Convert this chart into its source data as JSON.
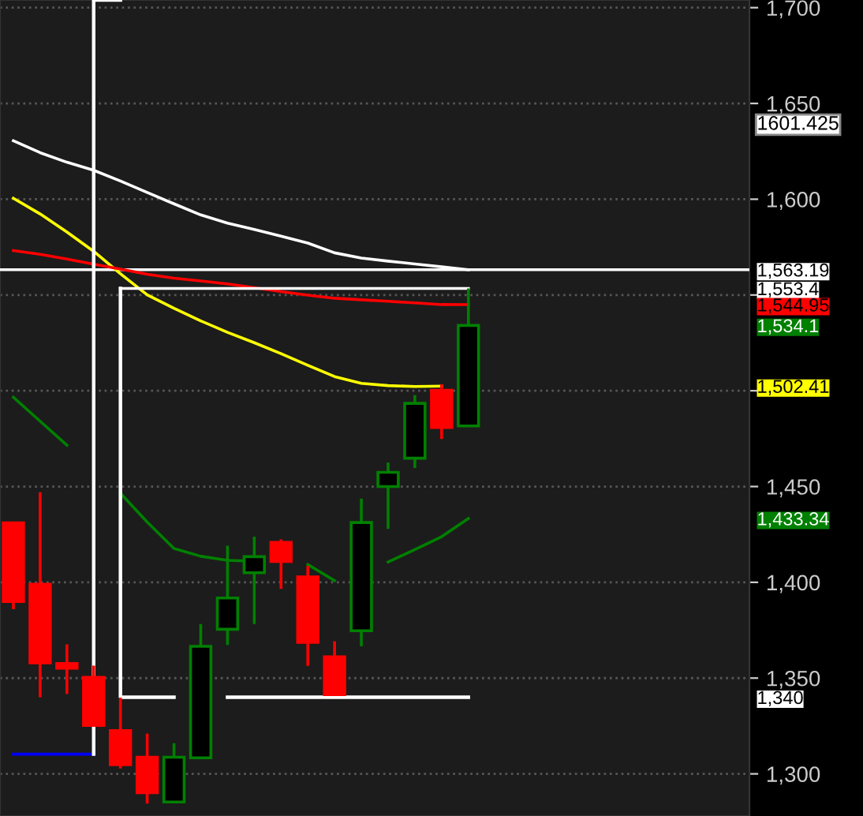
{
  "chart_data": {
    "type": "candlestick",
    "categories": [
      null,
      null,
      null,
      null,
      null,
      null,
      null,
      null,
      null,
      null,
      null,
      null,
      null,
      null,
      null,
      null,
      null,
      null,
      null,
      null,
      null,
      null,
      null,
      null,
      null,
      null,
      null,
      null
    ],
    "ylim": [
      1278,
      1704
    ],
    "yticks": [
      {
        "value": 1300,
        "label": "1,300"
      },
      {
        "value": 1350,
        "label": "1,350"
      },
      {
        "value": 1400,
        "label": "1,400"
      },
      {
        "value": 1450,
        "label": "1,450"
      },
      {
        "value": 1500,
        "label": null
      },
      {
        "value": 1550,
        "label": null
      },
      {
        "value": 1600,
        "label": "1,600"
      },
      {
        "value": 1650,
        "label": "1,650"
      },
      {
        "value": 1700,
        "label": "1,700"
      }
    ],
    "grid": "y",
    "series": [
      {
        "ohlc": [
          [
            1431,
            1431,
            1386,
            1390
          ],
          [
            1399,
            1447,
            1340,
            1358
          ],
          [
            1357.6,
            1367.6,
            1341.7,
            1355.2
          ],
          [
            1350.4,
            1356.5,
            1325,
            1325.3
          ],
          [
            1322.6,
            1339.8,
            1302.8,
            1304.8
          ],
          [
            1308.7,
            1321,
            1284.5,
            1290.2
          ],
          [
            1285.3,
            1316,
            1285.3,
            1308.7
          ],
          [
            1308.4,
            1378.2,
            1308.4,
            1366.6
          ],
          [
            1375.5,
            1419.1,
            1367.3,
            1391.8
          ],
          [
            1405,
            1423.8,
            1378.2,
            1413.4
          ],
          [
            1420.8,
            1422.4,
            1396.6,
            1410.9
          ],
          [
            1402.8,
            1408.5,
            1356.4,
            1368.7
          ],
          [
            1361.1,
            1369.2,
            1341.4,
            1341.4
          ],
          [
            1374.7,
            1443.7,
            1366.6,
            1431.2
          ],
          [
            1450,
            1462.5,
            1427.9,
            1457.4
          ],
          [
            1464.8,
            1497.7,
            1459.7,
            1493.4
          ],
          [
            1500.2,
            1503.4,
            1474.8,
            1480.8
          ],
          [
            1481.6,
            1553.4,
            1481.6,
            1534.1
          ],
          null,
          null,
          null,
          null,
          null,
          null,
          null,
          null,
          null,
          null
        ],
        "colors": [
          "#ff0000",
          "#ff0000",
          "#ff0000",
          "#ff0000",
          "#ff0000",
          "#ff0000",
          "#008000",
          "#008000",
          "#008000",
          "#008000",
          "#ff0000",
          "#ff0000",
          "#ff0000",
          "#008000",
          "#008000",
          "#008000",
          "#ff0000",
          "#008000",
          null,
          null,
          null,
          null,
          null,
          null,
          null,
          null,
          null,
          null
        ]
      },
      {
        "type": "line",
        "color": "#ffffff",
        "values": [
          1630.5,
          1624.3,
          1619.3,
          1615.1,
          1609.5,
          1603.5,
          1597.6,
          1591.8,
          1587.5,
          1584.2,
          1580.7,
          1577.1,
          1572,
          1569.3,
          1567.7,
          1566.2,
          1564.7,
          1563.19,
          null,
          null,
          null,
          null,
          null,
          null,
          null,
          null,
          null,
          null
        ]
      },
      {
        "type": "line",
        "color": "#ffff00",
        "values": [
          1600.5,
          1592.3,
          1582.9,
          1572.8,
          1561.1,
          1550.1,
          1543.1,
          1536.5,
          1530.5,
          1525.1,
          1519.4,
          1513.3,
          1507.4,
          1503.9,
          1502.7,
          1502.2,
          1502.41,
          null,
          null,
          null,
          null,
          null,
          null,
          null,
          null,
          null,
          null,
          null
        ]
      },
      {
        "type": "line",
        "color": "#ff0000",
        "values": [
          1573.2,
          1571.2,
          1568.8,
          1566.1,
          1563.5,
          1560.8,
          1558.8,
          1557.3,
          1555.8,
          1553.8,
          1551.8,
          1549.9,
          1548.3,
          1547.5,
          1546.7,
          1545.9,
          1545,
          1544.95,
          null,
          null,
          null,
          null,
          null,
          null,
          null,
          null,
          null,
          null
        ]
      },
      {
        "type": "line",
        "color": "#008000",
        "values": [
          1496.6,
          1484.1,
          1471.6,
          null,
          1446.5,
          1431.5,
          1417.7,
          1413.6,
          1411.5,
          1411,
          null,
          1409.3,
          1400.9,
          null,
          1410.6,
          1417.1,
          1423.8,
          1433.34,
          null,
          null,
          null,
          null,
          null,
          null,
          null,
          null,
          null,
          null
        ]
      },
      {
        "type": "line",
        "color": "#0000ff",
        "values": [
          1310.3,
          1310.3,
          1310.3,
          1310.3,
          null,
          null,
          null,
          null,
          null,
          null,
          null,
          null,
          null,
          null,
          null,
          null,
          null,
          null,
          null,
          null,
          null,
          null,
          null,
          null,
          null,
          null,
          null,
          null
        ]
      },
      {
        "type": "step",
        "color": "#ffffff",
        "values": [
          null,
          null,
          null,
          1310.3,
          1704,
          null,
          null,
          null,
          null,
          null,
          null,
          null,
          null,
          null,
          null,
          null,
          null,
          null,
          null,
          null,
          null,
          null,
          null,
          null,
          null,
          null,
          null,
          null
        ]
      },
      {
        "type": "line",
        "color": "#ffffff",
        "values": [
          null,
          null,
          null,
          null,
          1553.4,
          1553.4,
          1553.4,
          1553.4,
          1553.4,
          1553.4,
          1553.4,
          1553.4,
          1553.4,
          1553.4,
          1553.4,
          1553.4,
          1553.4,
          1553.4,
          null,
          null,
          null,
          null,
          null,
          null,
          null,
          null,
          null,
          null
        ]
      },
      {
        "type": "step",
        "color": "#ffffff",
        "values": [
          null,
          null,
          null,
          null,
          1553.4,
          1340,
          1340,
          null,
          1340,
          1340,
          1340,
          1340,
          1340,
          1340,
          1340,
          1340,
          1340,
          1340,
          null,
          null,
          null,
          null,
          null,
          null,
          null,
          null,
          null,
          null
        ]
      }
    ],
    "ref_lines": [
      {
        "axis": "y",
        "value": 1563.19,
        "color": "#ffffff"
      }
    ],
    "annotations": [
      "1601.425",
      "1,563.19",
      "1,553.4",
      "1,544.95",
      "1,534.1",
      "1,502.41",
      "1,433.34",
      "1,340"
    ]
  }
}
